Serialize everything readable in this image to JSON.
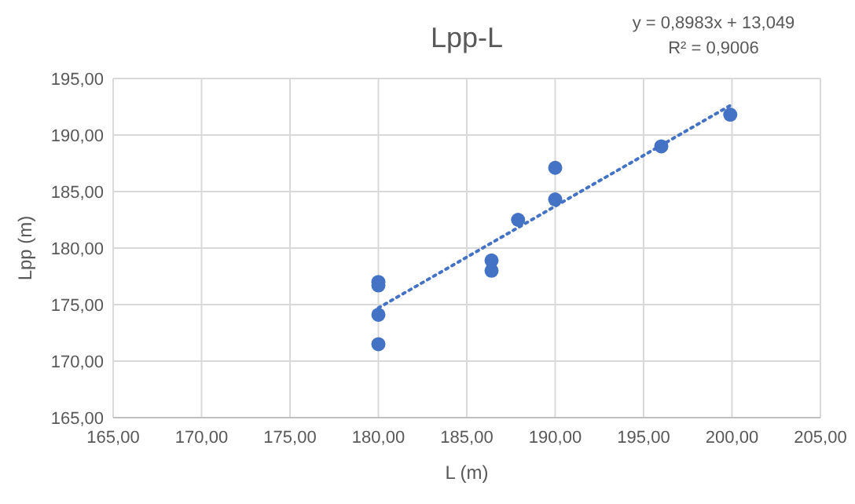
{
  "chart_data": {
    "type": "scatter",
    "title": "Lpp-L",
    "xlabel": "L (m)",
    "ylabel": "Lpp (m)",
    "annotations": [
      "y = 0,8983x + 13,049",
      "R² = 0,9006"
    ],
    "series": [
      {
        "color": "#4472c4",
        "marker": "circle",
        "x": [
          180,
          180,
          180,
          180,
          186.4,
          186.4,
          187.9,
          190,
          190,
          196,
          199.9
        ],
        "values": [
          177,
          176.7,
          174.1,
          171.5,
          178.9,
          178,
          182.5,
          187.1,
          184.3,
          189,
          191.8
        ]
      },
      {
        "type": "line",
        "color": "#4472c4",
        "line_style": "dotted",
        "marker": "none",
        "x": [
          180,
          200
        ],
        "values": [
          174.7,
          192.7
        ]
      }
    ],
    "xlim": [
      165,
      205
    ],
    "ylim": [
      165,
      195
    ],
    "xticks": [
      {
        "value": 165,
        "label": "165,00"
      },
      {
        "value": 170,
        "label": "170,00"
      },
      {
        "value": 175,
        "label": "175,00"
      },
      {
        "value": 180,
        "label": "180,00"
      },
      {
        "value": 185,
        "label": "185,00"
      },
      {
        "value": 190,
        "label": "190,00"
      },
      {
        "value": 195,
        "label": "195,00"
      },
      {
        "value": 200,
        "label": "200,00"
      },
      {
        "value": 205,
        "label": "205,00"
      }
    ],
    "yticks": [
      {
        "value": 165,
        "label": "165,00"
      },
      {
        "value": 170,
        "label": "170,00"
      },
      {
        "value": 175,
        "label": "175,00"
      },
      {
        "value": 180,
        "label": "180,00"
      },
      {
        "value": 185,
        "label": "185,00"
      },
      {
        "value": 190,
        "label": "190,00"
      },
      {
        "value": 195,
        "label": "195,00"
      }
    ],
    "grid": true
  }
}
